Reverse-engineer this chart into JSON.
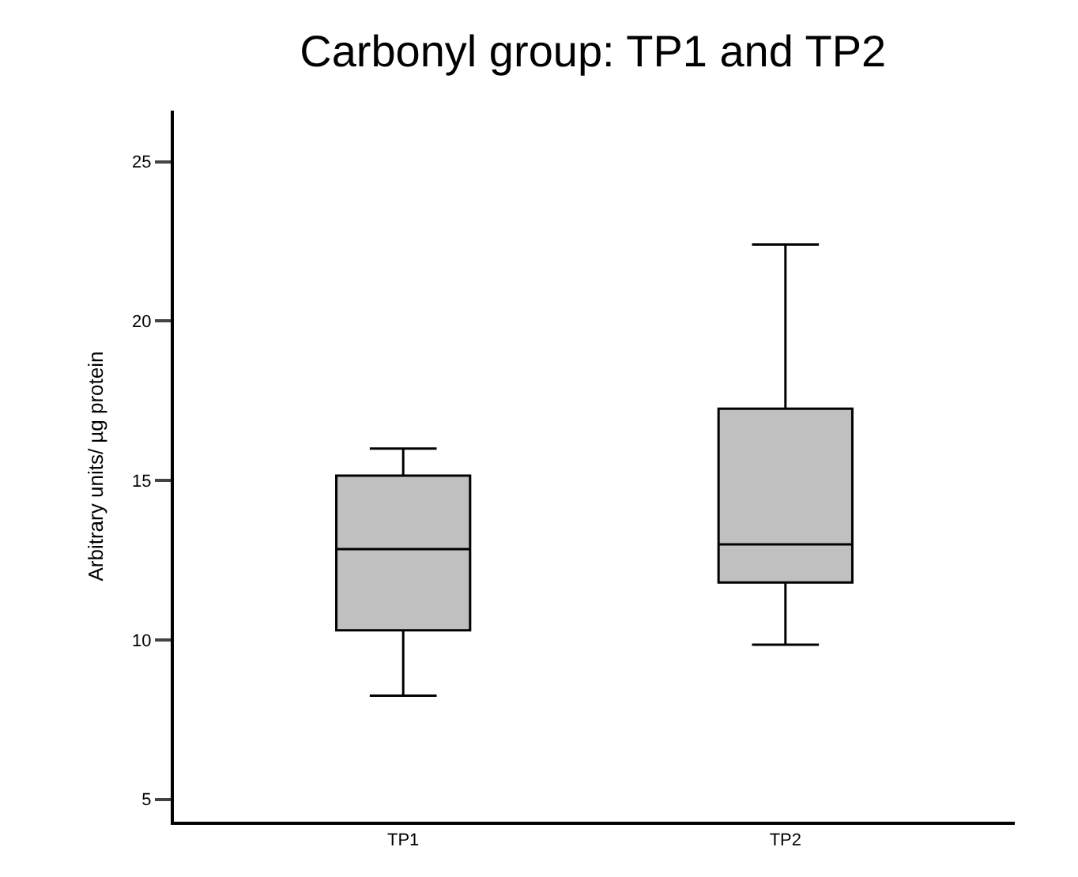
{
  "chart_data": {
    "type": "box",
    "title": "Carbonyl group: TP1 and TP2",
    "ylabel": "Arbitrary units/ µg protein",
    "categories": [
      "TP1",
      "TP2"
    ],
    "color": "#c0c0c0",
    "boxes": [
      {
        "low": 8.25,
        "q1": 10.3,
        "median": 12.85,
        "q3": 15.15,
        "high": 16.0
      },
      {
        "low": 9.85,
        "q1": 11.8,
        "median": 13.0,
        "q3": 17.25,
        "high": 22.4
      }
    ],
    "ylim": [
      4.3,
      26.6
    ],
    "yticks": [
      5,
      10,
      15,
      20,
      25
    ]
  }
}
